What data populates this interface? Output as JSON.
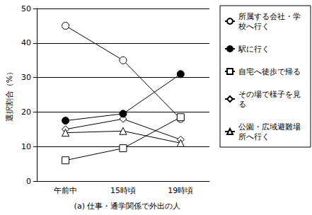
{
  "chart_data": {
    "type": "line",
    "title": "(a) 仕事・通学関係で外出の人",
    "y_label": "選択割合（%）",
    "categories": [
      "午前中",
      "15時頃",
      "19時頃"
    ],
    "series": [
      {
        "name": "所属する会社・学校へ行く",
        "color": "#000000",
        "marker": "circle_open",
        "values": [
          45,
          35,
          18
        ]
      },
      {
        "name": "駅に行く",
        "color": "#000000",
        "marker": "circle",
        "values": [
          17.5,
          19.5,
          31
        ]
      },
      {
        "name": "自宅へ徒歩で帰る",
        "color": "#000000",
        "marker": "square_open",
        "values": [
          6,
          9.5,
          18.5
        ]
      },
      {
        "name": "その場で様子を見る",
        "color": "#000000",
        "marker": "diamond_open",
        "values": [
          15,
          18,
          12
        ]
      },
      {
        "name": "公園・広域避難場所へ行く",
        "color": "#000000",
        "marker": "triangle_open",
        "values": [
          14,
          14.5,
          11
        ]
      }
    ],
    "ylim": [
      0,
      50
    ],
    "yticks": [
      0,
      10,
      20,
      30,
      40,
      50
    ],
    "grid": true,
    "legend": "right"
  }
}
